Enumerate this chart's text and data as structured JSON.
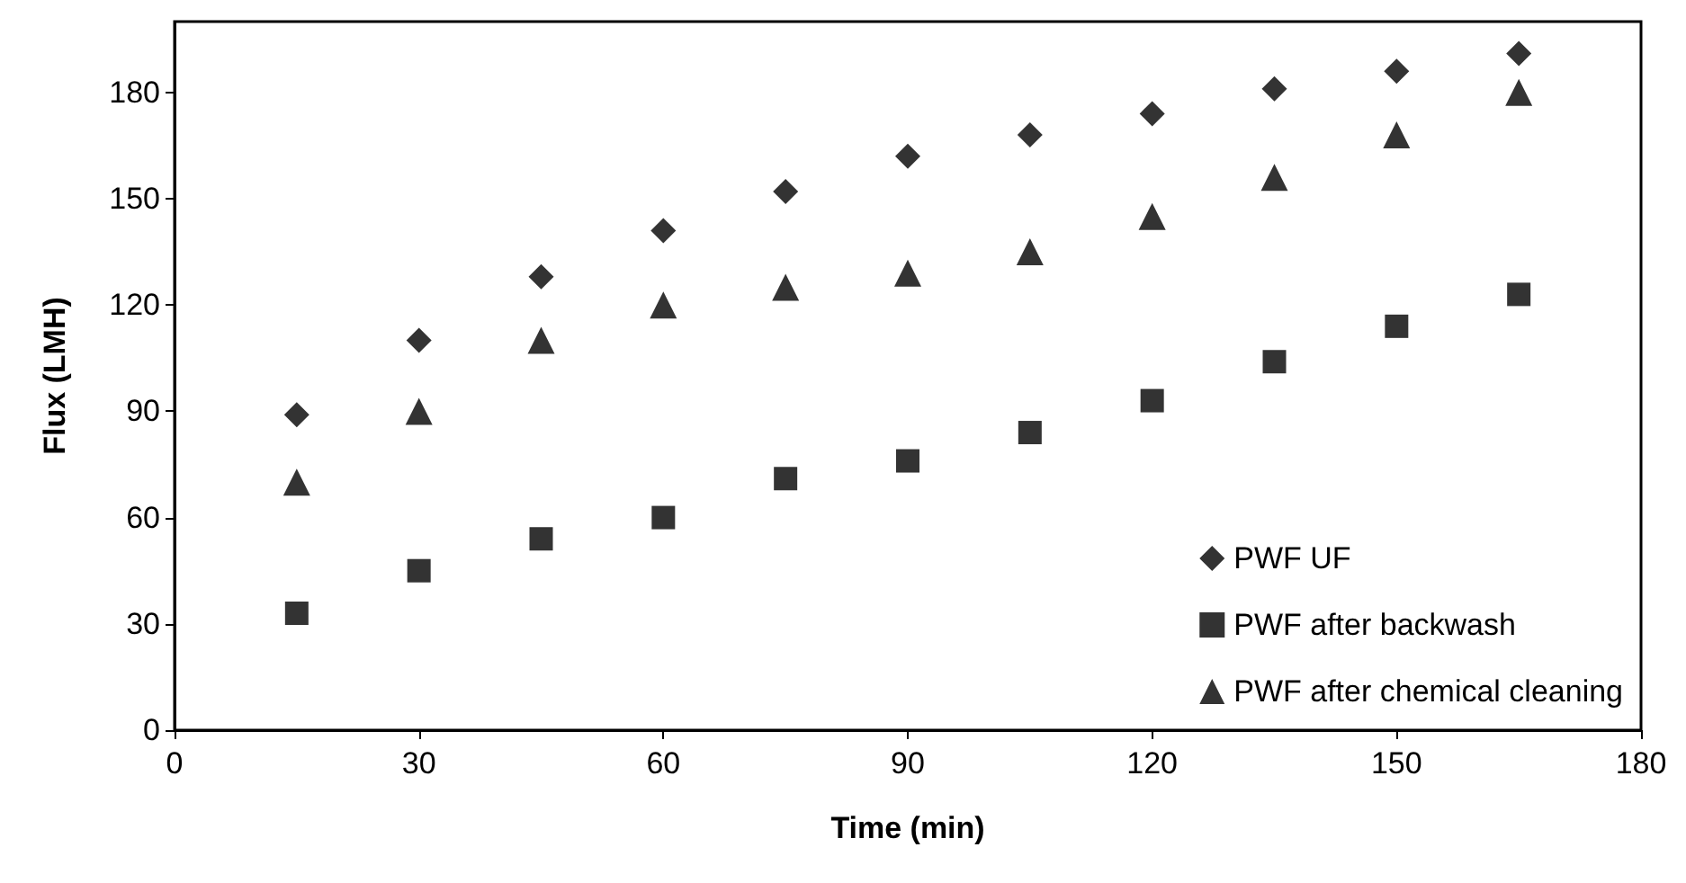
{
  "chart_data": {
    "type": "scatter",
    "xlabel": "Time (min)",
    "ylabel": "Flux (LMH)",
    "x": [
      15,
      30,
      45,
      60,
      75,
      90,
      105,
      120,
      135,
      150,
      165
    ],
    "series": [
      {
        "name": "PWF UF",
        "color": "#000000",
        "marker": "diamond",
        "values": [
          89,
          110,
          128,
          141,
          152,
          162,
          168,
          174,
          181,
          186,
          191
        ]
      },
      {
        "name": "PWF after backwash",
        "color": "#000000",
        "marker": "square",
        "values": [
          33,
          45,
          54,
          60,
          71,
          76,
          84,
          93,
          104,
          114,
          123
        ]
      },
      {
        "name": "PWF after chemical cleaning",
        "color": "#000000",
        "marker": "triangle",
        "values": [
          70,
          90,
          110,
          120,
          125,
          129,
          135,
          145,
          156,
          168,
          180
        ]
      }
    ],
    "xlim": [
      0,
      180
    ],
    "xticks": [
      0,
      30,
      60,
      90,
      120,
      150,
      180
    ],
    "ylim": [
      0,
      200
    ],
    "yticks": [
      0,
      30,
      60,
      90,
      120,
      150,
      180
    ],
    "grid": false,
    "legend": "bottom right"
  }
}
